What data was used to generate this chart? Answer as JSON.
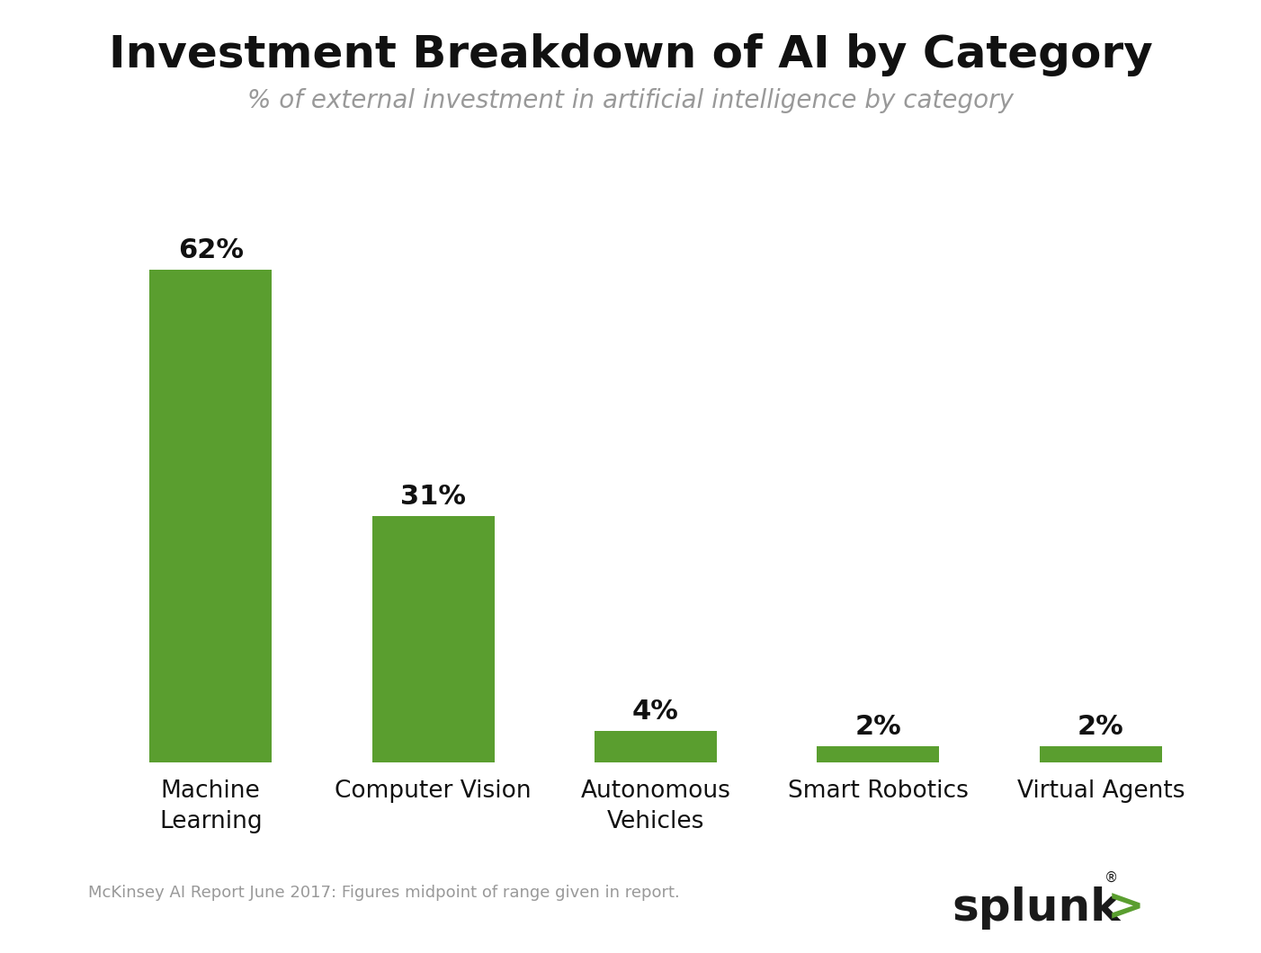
{
  "title": "Investment Breakdown of AI by Category",
  "subtitle": "% of external investment in artificial intelligence by category",
  "footnote": "McKinsey AI Report June 2017: Figures midpoint of range given in report.",
  "categories": [
    "Machine\nLearning",
    "Computer Vision",
    "Autonomous\nVehicles",
    "Smart Robotics",
    "Virtual Agents"
  ],
  "values": [
    62,
    31,
    4,
    2,
    2
  ],
  "labels": [
    "62%",
    "31%",
    "4%",
    "2%",
    "2%"
  ],
  "bar_color": "#5a9e2f",
  "title_color": "#111111",
  "subtitle_color": "#999999",
  "footnote_color": "#999999",
  "label_color": "#111111",
  "background_color": "#ffffff",
  "title_fontsize": 36,
  "subtitle_fontsize": 20,
  "label_fontsize": 22,
  "tick_fontsize": 19,
  "footnote_fontsize": 13,
  "ylim": [
    0,
    72
  ],
  "bar_width": 0.55,
  "splunk_text_color": "#1a1a1a",
  "splunk_arrow_color": "#5a9e2f",
  "splunk_fontsize": 36
}
